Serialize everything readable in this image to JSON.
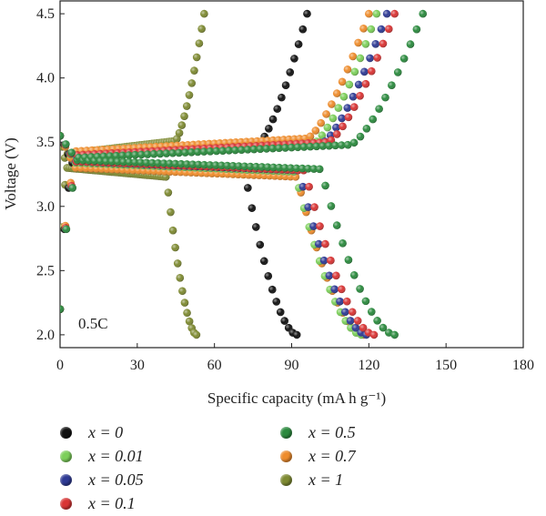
{
  "chart_data": {
    "type": "scatter",
    "xlabel": "Specific capacity (mA h g⁻¹)",
    "ylabel": "Voltage (V)",
    "xlim": [
      0,
      180
    ],
    "ylim": [
      1.9,
      4.6
    ],
    "xticks": [
      "0",
      "30",
      "60",
      "90",
      "120",
      "150",
      "180"
    ],
    "yticks": [
      "2.0",
      "2.5",
      "3.0",
      "3.5",
      "4.0",
      "4.5"
    ],
    "annotation": "0.5C",
    "legend_position": "bottom",
    "series": [
      {
        "name": "x = 0",
        "color": "#111111",
        "discharge_capacity": 92,
        "charge_capacity": 96,
        "charge_plateau": 3.42,
        "discharge_plateau": 3.34
      },
      {
        "name": "x = 0.01",
        "color": "#7ccf5a",
        "discharge_capacity": 117,
        "charge_capacity": 123,
        "charge_plateau": 3.43,
        "discharge_plateau": 3.34
      },
      {
        "name": "x = 0.05",
        "color": "#2e3a94",
        "discharge_capacity": 119,
        "charge_capacity": 127,
        "charge_plateau": 3.43,
        "discharge_plateau": 3.35
      },
      {
        "name": "x = 0.1",
        "color": "#d93434",
        "discharge_capacity": 122,
        "charge_capacity": 130,
        "charge_plateau": 3.44,
        "discharge_plateau": 3.35
      },
      {
        "name": "x = 0.5",
        "color": "#2b8a3e",
        "discharge_capacity": 130,
        "charge_capacity": 141,
        "charge_plateau": 3.42,
        "discharge_plateau": 3.36
      },
      {
        "name": "x = 0.7",
        "color": "#ee8c2c",
        "discharge_capacity": 118,
        "charge_capacity": 120,
        "charge_plateau": 3.47,
        "discharge_plateau": 3.3
      },
      {
        "name": "x = 1",
        "color": "#7e8a32",
        "discharge_capacity": 53,
        "charge_capacity": 56,
        "charge_plateau": 3.45,
        "discharge_plateau": 3.3
      }
    ]
  },
  "legend": [
    {
      "label": "x = 0",
      "color": "#111111"
    },
    {
      "label": "x = 0.5",
      "color": "#2b8a3e"
    },
    {
      "label": "x = 0.01",
      "color": "#7ccf5a"
    },
    {
      "label": "x = 0.7",
      "color": "#ee8c2c"
    },
    {
      "label": "x = 0.05",
      "color": "#2e3a94"
    },
    {
      "label": "x = 1",
      "color": "#7e8a32"
    },
    {
      "label": "x = 0.1",
      "color": "#d93434"
    }
  ]
}
